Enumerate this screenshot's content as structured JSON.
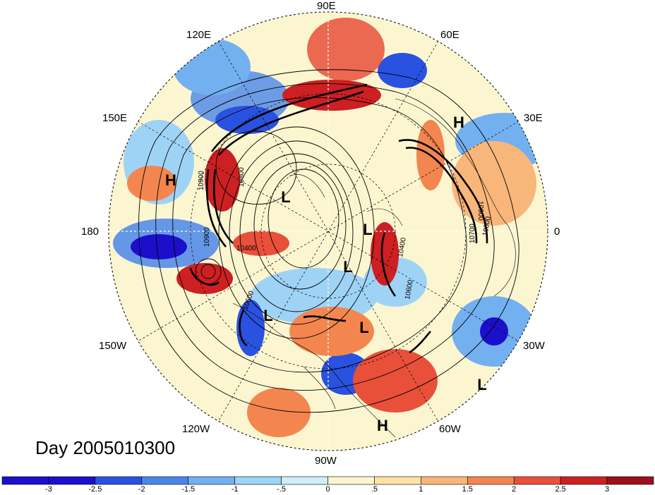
{
  "title": "Day 2005010300",
  "longitude_labels": [
    "90E",
    "60E",
    "30E",
    "0",
    "30W",
    "60W",
    "90W",
    "120W",
    "150W",
    "180",
    "150E",
    "120E"
  ],
  "pressure_centers": [
    "H",
    "H",
    "H",
    "L",
    "L",
    "L",
    "L",
    "L",
    "L"
  ],
  "contour_labels": [
    "10900",
    "10800",
    "10400",
    "10600",
    "10900",
    "10900",
    "10700",
    "10600",
    "10800",
    "10400"
  ],
  "colorbar": {
    "ticks": [
      "-3",
      "-2.5",
      "-2",
      "-1.5",
      "-1",
      "-.5",
      "0",
      ".5",
      "1",
      "1.5",
      "2",
      "2.5",
      "3"
    ],
    "colors": [
      "#1c0fcc",
      "#2a52e0",
      "#4a86ea",
      "#73b0f0",
      "#9fd3f6",
      "#d0eefa",
      "#fbf6d0",
      "#fde3a5",
      "#f9b67a",
      "#f3864f",
      "#e8503a",
      "#cc2023",
      "#9e0f1c"
    ]
  }
}
